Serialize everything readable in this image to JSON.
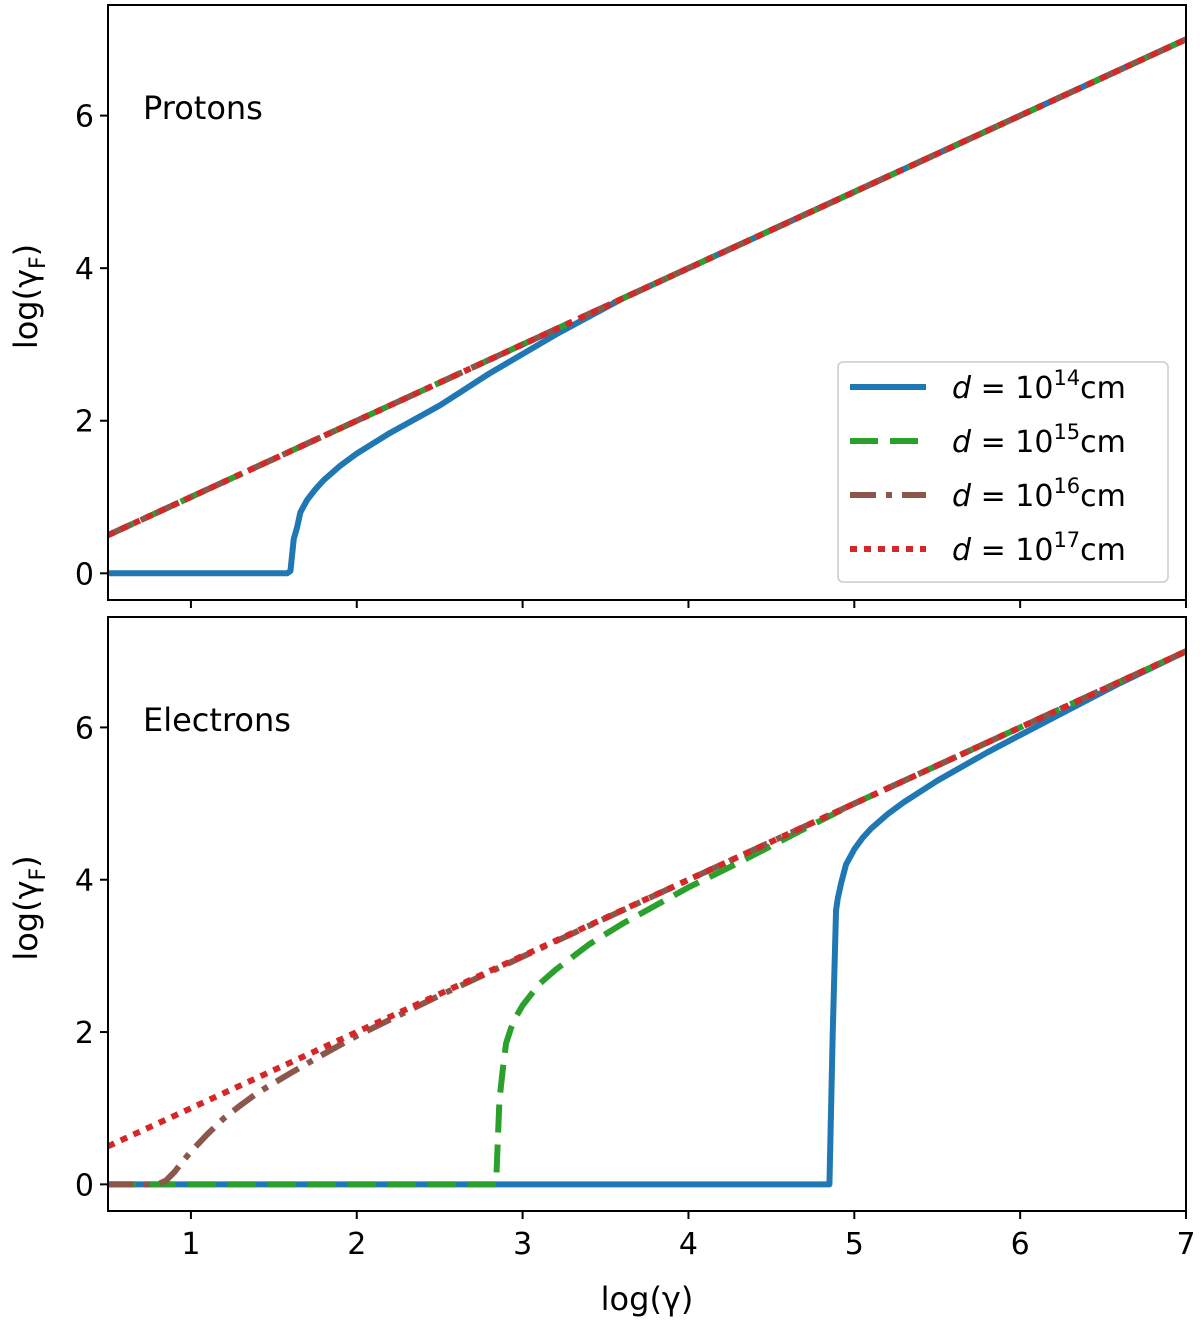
{
  "chart_data": [
    {
      "type": "line",
      "panel_label": "Protons",
      "xlabel": "log(γ)",
      "ylabel": "log(γ_F)",
      "ylabel_main": "log(γ",
      "ylabel_sub": "F",
      "ylabel_close": ")",
      "xlim": [
        0.5,
        7
      ],
      "ylim": [
        -0.35,
        7.45
      ],
      "xticks": [
        1,
        2,
        3,
        4,
        5,
        6,
        7
      ],
      "xtick_labels_shown": false,
      "yticks": [
        0,
        2,
        4,
        6
      ],
      "ytick_labels": [
        "0",
        "2",
        "4",
        "6"
      ],
      "grid": false,
      "legend_position": "lower-right",
      "series": [
        {
          "name": "d=10^14 cm",
          "color": "#1f77b4",
          "style": "solid",
          "x": [
            0.5,
            1.58,
            1.6,
            1.62,
            1.64,
            1.66,
            1.7,
            1.75,
            1.8,
            1.9,
            2.0,
            2.2,
            2.5,
            2.8,
            3.2,
            3.6,
            4.0,
            5.0,
            6.0,
            7.0
          ],
          "y": [
            0.0,
            0.0,
            0.03,
            0.45,
            0.6,
            0.8,
            0.96,
            1.1,
            1.22,
            1.41,
            1.57,
            1.84,
            2.2,
            2.62,
            3.13,
            3.6,
            4.0,
            5.0,
            6.0,
            7.0
          ]
        },
        {
          "name": "d=10^15 cm",
          "color": "#2ca02c",
          "style": "dashed",
          "x": [
            0.5,
            7.0
          ],
          "y": [
            0.5,
            7.0
          ]
        },
        {
          "name": "d=10^16 cm",
          "color": "#8c564b",
          "style": "dashdot",
          "x": [
            0.5,
            7.0
          ],
          "y": [
            0.5,
            7.0
          ]
        },
        {
          "name": "d=10^17 cm",
          "color": "#d62728",
          "style": "dotted",
          "x": [
            0.5,
            7.0
          ],
          "y": [
            0.5,
            7.0
          ]
        }
      ]
    },
    {
      "type": "line",
      "panel_label": "Electrons",
      "xlabel": "log(γ)",
      "ylabel": "log(γ_F)",
      "ylabel_main": "log(γ",
      "ylabel_sub": "F",
      "ylabel_close": ")",
      "xlim": [
        0.5,
        7
      ],
      "ylim": [
        -0.35,
        7.45
      ],
      "xticks": [
        1,
        2,
        3,
        4,
        5,
        6,
        7
      ],
      "xtick_labels": [
        "1",
        "2",
        "3",
        "4",
        "5",
        "6",
        "7"
      ],
      "yticks": [
        0,
        2,
        4,
        6
      ],
      "ytick_labels": [
        "0",
        "2",
        "4",
        "6"
      ],
      "grid": false,
      "series": [
        {
          "name": "d=10^14 cm",
          "color": "#1f77b4",
          "style": "solid",
          "x": [
            0.5,
            4.85,
            4.87,
            4.89,
            4.9,
            4.92,
            4.95,
            5.0,
            5.05,
            5.1,
            5.2,
            5.3,
            5.5,
            5.8,
            6.0,
            6.3,
            6.6,
            7.0
          ],
          "y": [
            0.0,
            0.0,
            2.0,
            3.6,
            3.75,
            3.95,
            4.2,
            4.4,
            4.55,
            4.67,
            4.86,
            5.02,
            5.3,
            5.67,
            5.9,
            6.24,
            6.58,
            7.0
          ]
        },
        {
          "name": "d=10^15 cm",
          "color": "#2ca02c",
          "style": "dashed",
          "x": [
            0.5,
            2.84,
            2.86,
            2.88,
            2.9,
            2.93,
            2.96,
            3.0,
            3.1,
            3.2,
            3.4,
            3.6,
            3.8,
            4.0,
            4.3,
            4.7,
            5.0,
            5.5,
            6.0,
            6.5,
            7.0
          ],
          "y": [
            0.0,
            0.0,
            1.1,
            1.5,
            1.85,
            2.05,
            2.2,
            2.35,
            2.63,
            2.82,
            3.15,
            3.42,
            3.66,
            3.9,
            4.22,
            4.67,
            5.0,
            5.5,
            6.0,
            6.5,
            7.0
          ]
        },
        {
          "name": "d=10^16 cm",
          "color": "#8c564b",
          "style": "dashdot",
          "x": [
            0.5,
            0.8,
            0.85,
            0.9,
            0.95,
            1.0,
            1.1,
            1.2,
            1.3,
            1.4,
            1.5,
            1.6,
            1.8,
            2.0,
            2.5,
            3.0,
            4.0,
            5.0,
            6.0,
            7.0
          ],
          "y": [
            0.0,
            0.0,
            0.05,
            0.16,
            0.3,
            0.43,
            0.66,
            0.87,
            1.04,
            1.2,
            1.33,
            1.46,
            1.71,
            1.95,
            2.48,
            2.99,
            4.0,
            5.0,
            6.0,
            7.0
          ]
        },
        {
          "name": "d=10^17 cm",
          "color": "#d62728",
          "style": "dotted",
          "x": [
            0.5,
            7.0
          ],
          "y": [
            0.5,
            7.0
          ]
        }
      ]
    }
  ],
  "legend": {
    "entries": [
      {
        "prefix": "d",
        "eq": " = 10",
        "exp": "14",
        "unit": "cm",
        "color": "#1f77b4",
        "style": "solid"
      },
      {
        "prefix": "d",
        "eq": " = 10",
        "exp": "15",
        "unit": "cm",
        "color": "#2ca02c",
        "style": "dashed"
      },
      {
        "prefix": "d",
        "eq": " = 10",
        "exp": "16",
        "unit": "cm",
        "color": "#8c564b",
        "style": "dashdot"
      },
      {
        "prefix": "d",
        "eq": " = 10",
        "exp": "17",
        "unit": "cm",
        "color": "#d62728",
        "style": "dotted"
      }
    ]
  }
}
